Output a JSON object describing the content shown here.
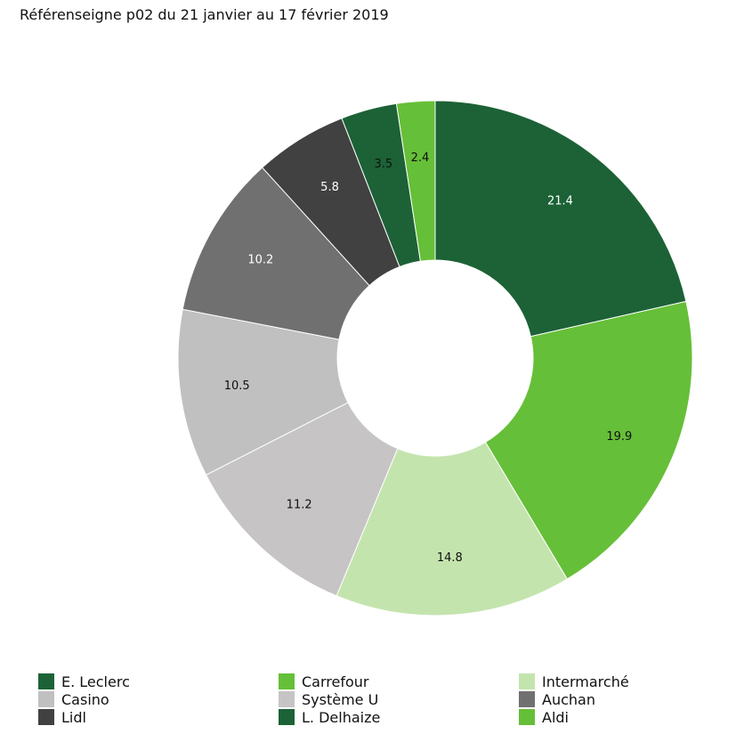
{
  "chart_data": {
    "type": "pie",
    "title": "Référenseigne p02 du 21 janvier au 17 février 2019",
    "donut": true,
    "legend_position": "bottom",
    "slices": [
      {
        "label": "E. Leclerc",
        "value": 21.4,
        "display": "21.4",
        "color": "#1c6236",
        "text_color": "#ffffff"
      },
      {
        "label": "Carrefour",
        "value": 19.9,
        "display": "19.9",
        "color": "#66bf38",
        "text_color": "#111111"
      },
      {
        "label": "Intermarché",
        "value": 14.8,
        "display": "14.8",
        "color": "#c4e4ae",
        "text_color": "#111111"
      },
      {
        "label": "Système U",
        "value": 11.2,
        "display": "11.2",
        "color": "#c6c4c5",
        "text_color": "#111111"
      },
      {
        "label": "Casino",
        "value": 10.5,
        "display": "10.5",
        "color": "#c0c0c0",
        "text_color": "#111111"
      },
      {
        "label": "Auchan",
        "value": 10.2,
        "display": "10.2",
        "color": "#707070",
        "text_color": "#ffffff"
      },
      {
        "label": "Lidl",
        "value": 5.8,
        "display": "5.8",
        "color": "#414141",
        "text_color": "#ffffff"
      },
      {
        "label": "L. Delhaize",
        "value": 3.5,
        "display": "3.5",
        "color": "#1c6236",
        "text_color": "#111111"
      },
      {
        "label": "Aldi",
        "value": 2.4,
        "display": "2.4",
        "color": "#66bf38",
        "text_color": "#111111"
      }
    ],
    "legend": [
      {
        "label": "E. Leclerc",
        "color": "#1c6236"
      },
      {
        "label": "Carrefour",
        "color": "#66bf38"
      },
      {
        "label": "Intermarché",
        "color": "#c4e4ae"
      },
      {
        "label": "Casino",
        "color": "#c0c0c0"
      },
      {
        "label": "Système U",
        "color": "#c6c4c5"
      },
      {
        "label": "Auchan",
        "color": "#707070"
      },
      {
        "label": "Lidl",
        "color": "#414141"
      },
      {
        "label": "L. Delhaize",
        "color": "#1c6236"
      },
      {
        "label": "Aldi",
        "color": "#66bf38"
      }
    ]
  }
}
